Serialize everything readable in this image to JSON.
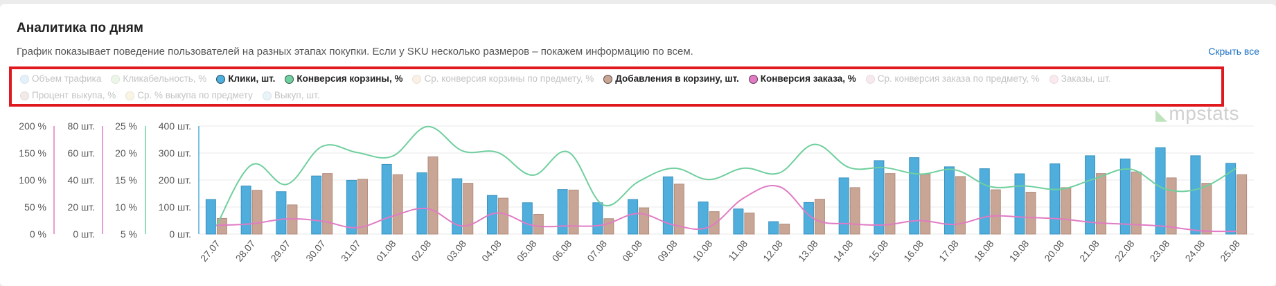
{
  "header": {
    "title": "Аналитика по дням",
    "subtitle": "График показывает поведение пользователей на разных этапах покупки. Если у SKU несколько размеров – покажем информацию по всем.",
    "hide_all": "Скрыть все"
  },
  "watermark": "mpstats",
  "legend": [
    {
      "label": "Объем трафика",
      "color": "#a8d4f0",
      "active": false,
      "icon": "circle"
    },
    {
      "label": "Кликабельность, %",
      "color": "#bfe3b4",
      "active": false,
      "icon": "circle"
    },
    {
      "label": "Клики, шт.",
      "color": "#4faedc",
      "active": true,
      "icon": "circle"
    },
    {
      "label": "Конверсия корзины, %",
      "color": "#6fcf9e",
      "active": true,
      "icon": "circle"
    },
    {
      "label": "Ср. конверсия корзины по предмету, %",
      "color": "#f5cfa8",
      "active": false,
      "icon": "circle"
    },
    {
      "label": "Добавления в корзину, шт.",
      "color": "#c9a595",
      "active": true,
      "icon": "circle"
    },
    {
      "label": "Конверсия заказа, %",
      "color": "#e07bc4",
      "active": true,
      "icon": "circle"
    },
    {
      "label": "Ср. конверсия заказа по предмету, %",
      "color": "#e8b8cc",
      "active": false,
      "icon": "circle"
    },
    {
      "label": "Заказы, шт.",
      "color": "#f0b8c4",
      "active": false,
      "icon": "circle"
    },
    {
      "label": "Процент выкупа, %",
      "color": "#d8b8b0",
      "active": false,
      "icon": "circle"
    },
    {
      "label": "Ср. % выкупа по предмету",
      "color": "#f0e0a0",
      "active": false,
      "icon": "circle"
    },
    {
      "label": "Выкуп, шт.",
      "color": "#b8d8f0",
      "active": false,
      "icon": "circle"
    }
  ],
  "chart_data": {
    "type": "bar",
    "categories": [
      "27.07",
      "28.07",
      "29.07",
      "30.07",
      "31.07",
      "01.08",
      "02.08",
      "03.08",
      "04.08",
      "05.08",
      "06.08",
      "07.08",
      "08.08",
      "09.08",
      "10.08",
      "11.08",
      "12.08",
      "13.08",
      "14.08",
      "15.08",
      "16.08",
      "17.08",
      "18.08",
      "19.08",
      "20.08",
      "21.08",
      "22.08",
      "23.08",
      "24.08",
      "25.08"
    ],
    "axes": {
      "order_conversion": {
        "ticks": [
          "200 %",
          "150 %",
          "100 %",
          "50 %",
          "0 %"
        ],
        "ylim": [
          0,
          200
        ],
        "color": "#e07bc4"
      },
      "pieces_small": {
        "ticks": [
          "80 шт.",
          "60 шт.",
          "40 шт.",
          "20 шт.",
          "0 шт."
        ],
        "ylim": [
          0,
          80
        ],
        "color": "#e07bc4"
      },
      "cart_conversion": {
        "ticks": [
          "25 %",
          "20 %",
          "15 %",
          "10 %",
          "5 %"
        ],
        "ylim": [
          5,
          25
        ],
        "color": "#6fcf9e"
      },
      "clicks": {
        "ticks": [
          "400 шт.",
          "300 шт.",
          "200 шт.",
          "100 шт.",
          "0 шт."
        ],
        "ylim": [
          0,
          400
        ],
        "color": "#4faedc"
      }
    },
    "series": [
      {
        "name": "Клики, шт.",
        "type": "bar",
        "axis": "clicks",
        "color": "#4faedc",
        "values": [
          128,
          178,
          157,
          215,
          199,
          258,
          227,
          205,
          143,
          116,
          165,
          116,
          128,
          212,
          119,
          93,
          46,
          117,
          208,
          272,
          283,
          249,
          242,
          223,
          260,
          290,
          278,
          320,
          290,
          262
        ]
      },
      {
        "name": "Добавления в корзину, шт.",
        "type": "bar",
        "axis": "clicks",
        "color": "#c9a595",
        "values": [
          58,
          162,
          108,
          224,
          203,
          220,
          286,
          188,
          133,
          73,
          163,
          57,
          97,
          185,
          83,
          78,
          37,
          129,
          172,
          224,
          222,
          213,
          164,
          155,
          172,
          224,
          230,
          208,
          188,
          220
        ]
      },
      {
        "name": "Конверсия корзины, %",
        "type": "line",
        "axis": "cart_conversion",
        "color": "#6fcf9e",
        "values": [
          6.5,
          17.8,
          14.2,
          21.2,
          20.1,
          19.4,
          24.9,
          20.4,
          20.1,
          15.9,
          20.2,
          10.4,
          14.7,
          17.2,
          15.1,
          17.2,
          16.3,
          21.6,
          17.3,
          17.3,
          16.1,
          16.9,
          13.8,
          13.9,
          13.3,
          15.3,
          17.0,
          13.3,
          13.5,
          17.2
        ]
      },
      {
        "name": "Конверсия заказа, %",
        "type": "line",
        "axis": "order_conversion",
        "color": "#e07bc4",
        "values": [
          16,
          19,
          28,
          24,
          12,
          33,
          47,
          15,
          39,
          16,
          15,
          17,
          38,
          17,
          13,
          67,
          88,
          28,
          19,
          17,
          25,
          18,
          33,
          31,
          28,
          21,
          18,
          14,
          6,
          5
        ]
      }
    ]
  }
}
